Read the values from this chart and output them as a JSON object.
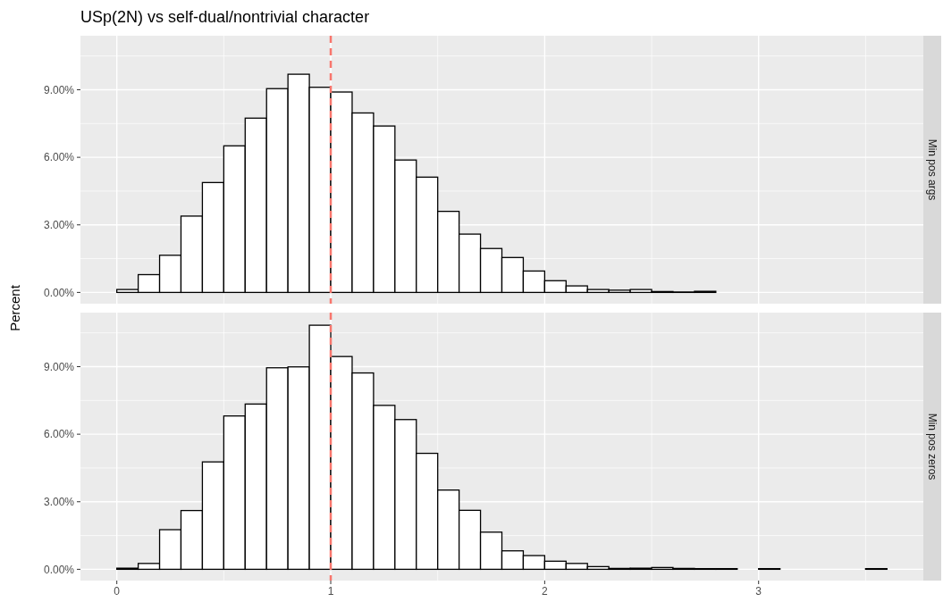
{
  "chart_data": [
    {
      "type": "histogram",
      "title": "USp(2N) vs self-dual/nontrivial character",
      "subtitle": "Min pos args",
      "ylabel": "Percent",
      "bins": [
        0,
        0.1,
        0.2,
        0.3,
        0.4,
        0.5,
        0.6,
        0.7,
        0.8,
        0.9,
        1.0,
        1.1,
        1.2,
        1.3,
        1.4,
        1.5,
        1.6,
        1.7,
        1.8,
        1.9,
        2.0,
        2.1,
        2.2,
        2.3,
        2.4,
        2.5,
        2.6,
        2.7,
        2.8
      ],
      "values": [
        0.13,
        0.79,
        1.65,
        3.39,
        4.88,
        6.51,
        7.74,
        9.05,
        9.69,
        9.11,
        8.9,
        7.97,
        7.39,
        5.88,
        5.12,
        3.6,
        2.59,
        1.95,
        1.55,
        0.95,
        0.52,
        0.29,
        0.13,
        0.1,
        0.13,
        0.04,
        0.02,
        0.05
      ],
      "color": "#ffffff",
      "xlim": [
        -0.17,
        3.77
      ],
      "xticks": [
        0,
        1,
        2,
        3
      ],
      "ylim": [
        -0.5,
        11.4
      ],
      "yticks": [
        {
          "value": 0,
          "label": "0.00%"
        },
        {
          "value": 3,
          "label": "3.00%"
        },
        {
          "value": 6,
          "label": "6.00%"
        },
        {
          "value": 9,
          "label": "9.00%"
        }
      ],
      "ref_lines": [
        {
          "axis": "x",
          "value": 1,
          "color": "#f8766d",
          "line_style": "dashed"
        }
      ],
      "grid": true,
      "tick_labels": "y"
    },
    {
      "type": "histogram",
      "subtitle": "Min pos zeros",
      "bins": [
        0,
        0.1,
        0.2,
        0.3,
        0.4,
        0.5,
        0.6,
        0.7,
        0.8,
        0.9,
        1.0,
        1.1,
        1.2,
        1.3,
        1.4,
        1.5,
        1.6,
        1.7,
        1.8,
        1.9,
        2.0,
        2.1,
        2.2,
        2.3,
        2.4,
        2.5,
        2.6,
        2.7,
        2.8,
        2.9,
        3.0,
        3.1,
        3.2,
        3.3,
        3.4,
        3.5,
        3.6
      ],
      "values": [
        0.05,
        0.26,
        1.76,
        2.61,
        4.77,
        6.81,
        7.34,
        8.95,
        8.99,
        10.84,
        9.45,
        8.72,
        7.28,
        6.65,
        5.15,
        3.52,
        2.62,
        1.65,
        0.82,
        0.61,
        0.36,
        0.26,
        0.12,
        0.04,
        0.05,
        0.08,
        0.04,
        0.03,
        0.03,
        0,
        0.03,
        0,
        0,
        0,
        0,
        0.03
      ],
      "color": "#ffffff",
      "xlim": [
        -0.17,
        3.77
      ],
      "xticks": [
        0,
        1,
        2,
        3
      ],
      "ylim": [
        -0.5,
        11.4
      ],
      "yticks": [
        {
          "value": 0,
          "label": "0.00%"
        },
        {
          "value": 3,
          "label": "3.00%"
        },
        {
          "value": 6,
          "label": "6.00%"
        },
        {
          "value": 9,
          "label": "9.00%"
        }
      ],
      "ref_lines": [
        {
          "axis": "x",
          "value": 1,
          "color": "#f8766d",
          "line_style": "dashed"
        }
      ],
      "grid": true
    }
  ]
}
